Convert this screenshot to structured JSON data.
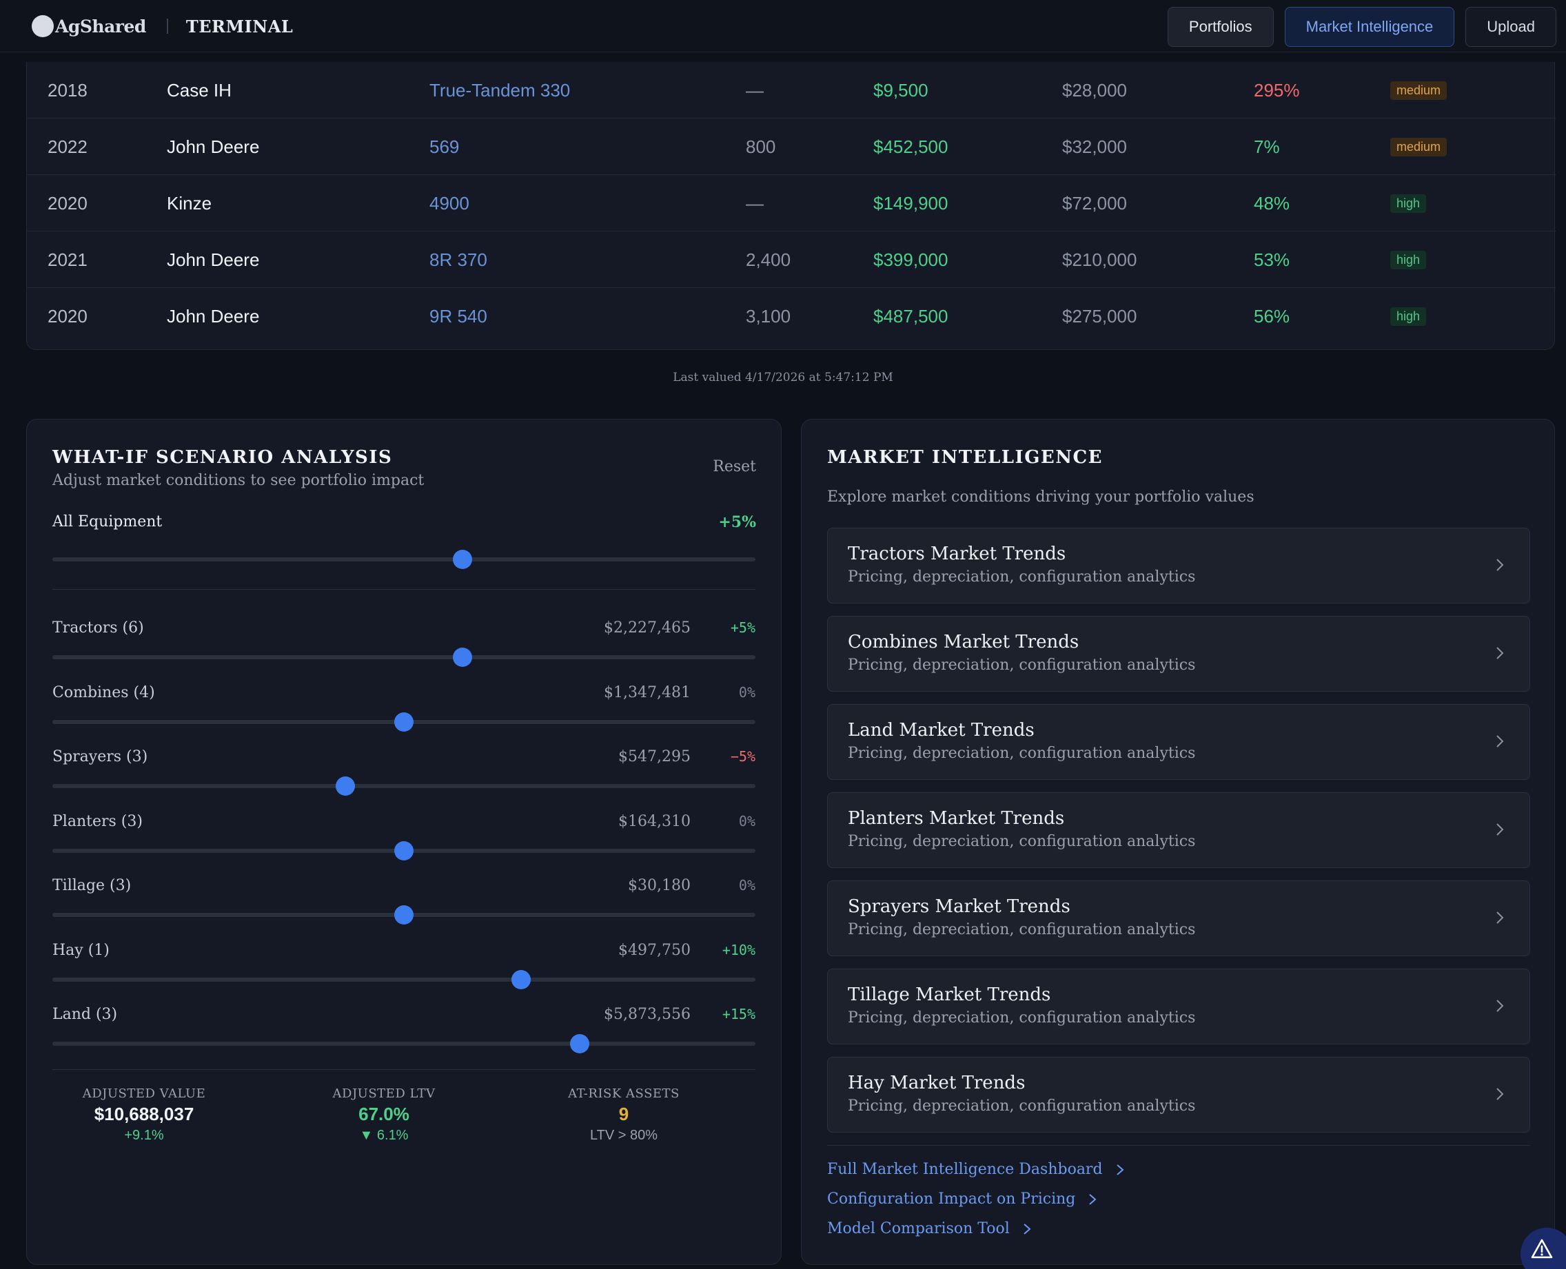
{
  "header": {
    "brand": "AgShared",
    "product": "TERMINAL",
    "nav": [
      {
        "label": "Portfolios"
      },
      {
        "label": "Market Intelligence"
      },
      {
        "label": "Upload"
      }
    ]
  },
  "equipment_table": {
    "rows": [
      {
        "year": "2018",
        "make": "Case IH",
        "model": "True-Tandem 330",
        "hours": "—",
        "price": "$9,500",
        "value": "$28,000",
        "pct": "295%",
        "confidence": "medium"
      },
      {
        "year": "2022",
        "make": "John Deere",
        "model": "569",
        "hours": "800",
        "price": "$452,500",
        "value": "$32,000",
        "pct": "7%",
        "confidence": "medium"
      },
      {
        "year": "2020",
        "make": "Kinze",
        "model": "4900",
        "hours": "—",
        "price": "$149,900",
        "value": "$72,000",
        "pct": "48%",
        "confidence": "high"
      },
      {
        "year": "2021",
        "make": "John Deere",
        "model": "8R 370",
        "hours": "2,400",
        "price": "$399,000",
        "value": "$210,000",
        "pct": "53%",
        "confidence": "high"
      },
      {
        "year": "2020",
        "make": "John Deere",
        "model": "9R 540",
        "hours": "3,100",
        "price": "$487,500",
        "value": "$275,000",
        "pct": "56%",
        "confidence": "high"
      }
    ],
    "last_valued": "Last valued 4/17/2026 at 5:47:12 PM"
  },
  "scenario": {
    "title": "WHAT-IF SCENARIO ANALYSIS",
    "subtitle": "Adjust market conditions to see portfolio impact",
    "reset_label": "Reset",
    "all_equipment": {
      "label": "All Equipment",
      "pct": "+5%",
      "level": 5
    },
    "categories": [
      {
        "label": "Tractors (6)",
        "amount": "$2,227,465",
        "pct": "+5%",
        "level": 5
      },
      {
        "label": "Combines (4)",
        "amount": "$1,347,481",
        "pct": "0%",
        "level": 0
      },
      {
        "label": "Sprayers (3)",
        "amount": "$547,295",
        "pct": "−5%",
        "level": -5
      },
      {
        "label": "Planters (3)",
        "amount": "$164,310",
        "pct": "0%",
        "level": 0
      },
      {
        "label": "Tillage (3)",
        "amount": "$30,180",
        "pct": "0%",
        "level": 0
      },
      {
        "label": "Hay (1)",
        "amount": "$497,750",
        "pct": "+10%",
        "level": 10
      },
      {
        "label": "Land (3)",
        "amount": "$5,873,556",
        "pct": "+15%",
        "level": 15
      }
    ],
    "slider_range": [
      -30,
      30
    ],
    "stats": [
      {
        "label": "ADJUSTED VALUE",
        "value": "$10,688,037",
        "sub": "+9.1%"
      },
      {
        "label": "ADJUSTED LTV",
        "value": "67.0%",
        "sub": "▼ 6.1%"
      },
      {
        "label": "AT-RISK ASSETS",
        "value": "9",
        "sub": "LTV > 80%"
      }
    ]
  },
  "market_intel": {
    "title": "MARKET INTELLIGENCE",
    "subtitle": "Explore market conditions driving your portfolio values",
    "cards": [
      {
        "title": "Tractors Market Trends",
        "sub": "Pricing, depreciation, configuration analytics"
      },
      {
        "title": "Combines Market Trends",
        "sub": "Pricing, depreciation, configuration analytics"
      },
      {
        "title": "Land Market Trends",
        "sub": "Pricing, depreciation, configuration analytics"
      },
      {
        "title": "Planters Market Trends",
        "sub": "Pricing, depreciation, configuration analytics"
      },
      {
        "title": "Sprayers Market Trends",
        "sub": "Pricing, depreciation, configuration analytics"
      },
      {
        "title": "Tillage Market Trends",
        "sub": "Pricing, depreciation, configuration analytics"
      },
      {
        "title": "Hay Market Trends",
        "sub": "Pricing, depreciation, configuration analytics"
      }
    ],
    "links": [
      {
        "label": "Full Market Intelligence Dashboard"
      },
      {
        "label": "Configuration Impact on Pricing"
      },
      {
        "label": "Model Comparison Tool"
      }
    ]
  },
  "colors": {
    "accent": "#3d7df0",
    "positive": "#4fd08a",
    "negative": "#ef6a6a",
    "warning": "#e0b13c"
  },
  "icons": [
    "logo-circle-icon",
    "chevron-right-icon",
    "warning-triangle-icon"
  ]
}
